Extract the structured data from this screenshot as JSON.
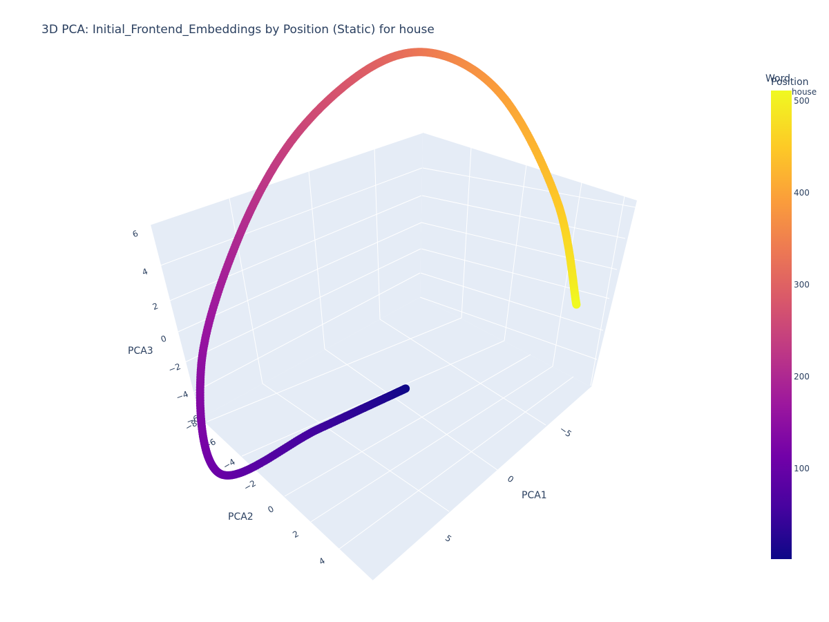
{
  "chart_data": {
    "type": "scatter",
    "title": "3D PCA: Initial_Frontend_Embeddings by Position (Static) for house",
    "axes": {
      "x": {
        "label": "PCA1",
        "ticks": [
          "−5",
          "0",
          "5"
        ]
      },
      "y": {
        "label": "PCA2",
        "ticks": [
          "−8",
          "−6",
          "−4",
          "−2",
          "0",
          "2",
          "4"
        ]
      },
      "z": {
        "label": "PCA3",
        "ticks": [
          "6",
          "4",
          "2",
          "0",
          "−2",
          "−4",
          "−6"
        ]
      }
    },
    "legend": {
      "title": "Word",
      "items": [
        "house"
      ]
    },
    "colorbar": {
      "title": "Position",
      "ticks": [
        "500",
        "400",
        "300",
        "200",
        "100"
      ],
      "range": [
        0,
        511
      ]
    },
    "series": [
      {
        "name": "house",
        "position": [
          0,
          50,
          100,
          150,
          200,
          250,
          300,
          350,
          400,
          450,
          511
        ],
        "x": [
          2.5,
          5.0,
          7.5,
          6.5,
          3.5,
          0.0,
          -3.5,
          -6.0,
          -7.5,
          -8.0,
          -6.5
        ],
        "y": [
          2.0,
          0.5,
          -1.5,
          -3.5,
          -5.0,
          -6.0,
          -6.0,
          -5.5,
          -4.0,
          -2.0,
          0.5
        ],
        "z": [
          -1.8,
          -3.3,
          -5.3,
          -2.0,
          1.5,
          4.0,
          5.5,
          5.0,
          3.0,
          -1.0,
          -3.5
        ]
      }
    ]
  }
}
